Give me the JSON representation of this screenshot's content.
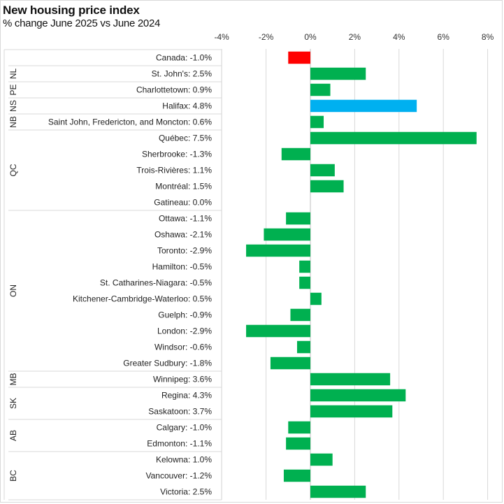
{
  "chart_data": {
    "type": "bar",
    "orientation": "horizontal",
    "title": "New housing price index",
    "subtitle": "% change June 2025 vs June 2024",
    "xlabel": "",
    "ylabel": "",
    "xlim": [
      -4,
      8
    ],
    "x_ticks": [
      -4,
      -2,
      0,
      2,
      4,
      6,
      8
    ],
    "x_tick_labels": [
      "-4%",
      "-2%",
      "0%",
      "2%",
      "4%",
      "6%",
      "8%"
    ],
    "grid": true,
    "legend": "none",
    "colors": {
      "default": "#00B050",
      "national": "#FF0000",
      "highlight": "#00B0F0",
      "grid": "#d9d9d9"
    },
    "groups": [
      {
        "province": "",
        "rows": [
          {
            "label": "Canada: -1.0%",
            "value": -1.0,
            "color_key": "national"
          }
        ]
      },
      {
        "province": "NL",
        "rows": [
          {
            "label": "St. John's: 2.5%",
            "value": 2.5,
            "color_key": "default"
          }
        ]
      },
      {
        "province": "PE",
        "rows": [
          {
            "label": "Charlottetown: 0.9%",
            "value": 0.9,
            "color_key": "default"
          }
        ]
      },
      {
        "province": "NS",
        "rows": [
          {
            "label": "Halifax: 4.8%",
            "value": 4.8,
            "color_key": "highlight"
          }
        ]
      },
      {
        "province": "NB",
        "rows": [
          {
            "label": "Saint John, Fredericton, and Moncton: 0.6%",
            "value": 0.6,
            "color_key": "default"
          }
        ]
      },
      {
        "province": "QC",
        "rows": [
          {
            "label": "Québec: 7.5%",
            "value": 7.5,
            "color_key": "default"
          },
          {
            "label": "Sherbrooke: -1.3%",
            "value": -1.3,
            "color_key": "default"
          },
          {
            "label": "Trois-Rivières: 1.1%",
            "value": 1.1,
            "color_key": "default"
          },
          {
            "label": "Montréal: 1.5%",
            "value": 1.5,
            "color_key": "default"
          },
          {
            "label": "Gatineau: 0.0%",
            "value": 0.0,
            "color_key": "default"
          }
        ]
      },
      {
        "province": "ON",
        "rows": [
          {
            "label": "Ottawa: -1.1%",
            "value": -1.1,
            "color_key": "default"
          },
          {
            "label": "Oshawa: -2.1%",
            "value": -2.1,
            "color_key": "default"
          },
          {
            "label": "Toronto: -2.9%",
            "value": -2.9,
            "color_key": "default"
          },
          {
            "label": "Hamilton: -0.5%",
            "value": -0.5,
            "color_key": "default"
          },
          {
            "label": "St. Catharines-Niagara: -0.5%",
            "value": -0.5,
            "color_key": "default"
          },
          {
            "label": "Kitchener-Cambridge-Waterloo: 0.5%",
            "value": 0.5,
            "color_key": "default"
          },
          {
            "label": "Guelph: -0.9%",
            "value": -0.9,
            "color_key": "default"
          },
          {
            "label": "London: -2.9%",
            "value": -2.9,
            "color_key": "default"
          },
          {
            "label": "Windsor: -0.6%",
            "value": -0.6,
            "color_key": "default"
          },
          {
            "label": "Greater Sudbury: -1.8%",
            "value": -1.8,
            "color_key": "default"
          }
        ]
      },
      {
        "province": "MB",
        "rows": [
          {
            "label": "Winnipeg: 3.6%",
            "value": 3.6,
            "color_key": "default"
          }
        ]
      },
      {
        "province": "SK",
        "rows": [
          {
            "label": "Regina: 4.3%",
            "value": 4.3,
            "color_key": "default"
          },
          {
            "label": "Saskatoon: 3.7%",
            "value": 3.7,
            "color_key": "default"
          }
        ]
      },
      {
        "province": "AB",
        "rows": [
          {
            "label": "Calgary: -1.0%",
            "value": -1.0,
            "color_key": "default"
          },
          {
            "label": "Edmonton: -1.1%",
            "value": -1.1,
            "color_key": "default"
          }
        ]
      },
      {
        "province": "BC",
        "rows": [
          {
            "label": "Kelowna: 1.0%",
            "value": 1.0,
            "color_key": "default"
          },
          {
            "label": "Vancouver: -1.2%",
            "value": -1.2,
            "color_key": "default"
          },
          {
            "label": "Victoria: 2.5%",
            "value": 2.5,
            "color_key": "default"
          }
        ]
      }
    ]
  }
}
